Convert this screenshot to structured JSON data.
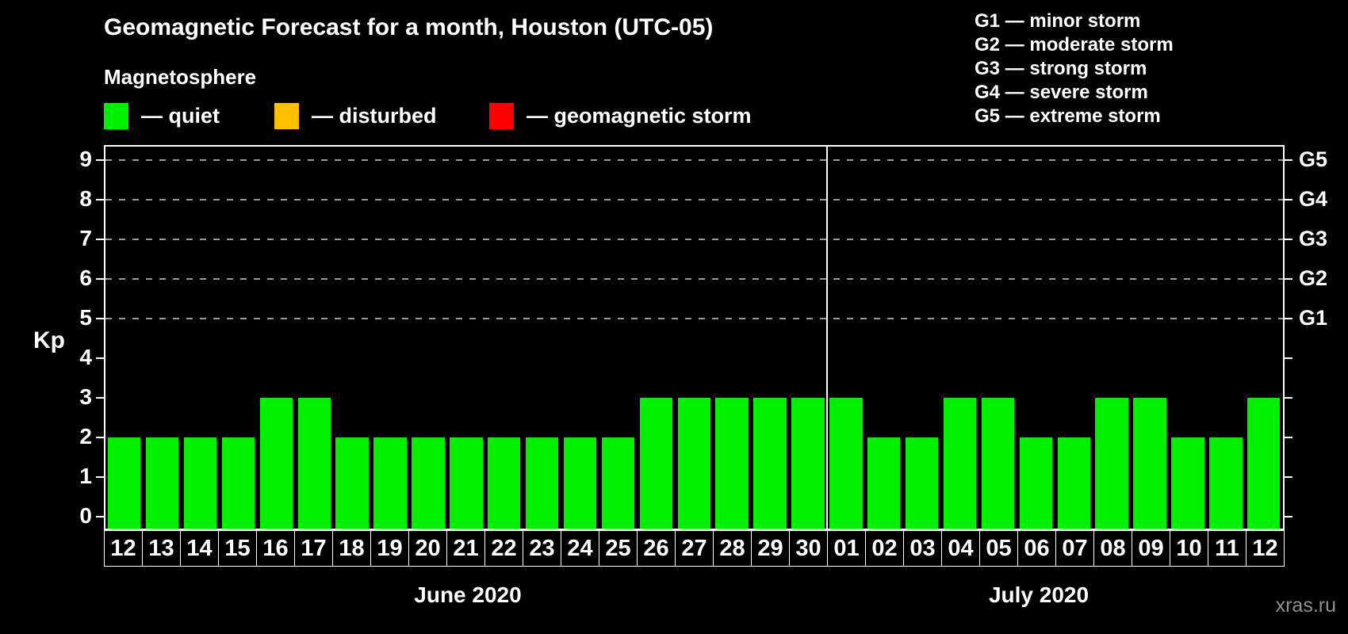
{
  "title": "Geomagnetic Forecast for a month, Houston (UTC-05)",
  "subtitle": "Magnetosphere",
  "legend": {
    "quiet": {
      "label": "— quiet",
      "color": "#00F000"
    },
    "disturbed": {
      "label": "— disturbed",
      "color": "#FFC000"
    },
    "storm": {
      "label": "— geomagnetic storm",
      "color": "#FF0000"
    }
  },
  "g_scale_legend": {
    "lines": [
      "G1 — minor storm",
      "G2 — moderate storm",
      "G3 — strong storm",
      "G4 — severe storm",
      "G5 — extreme storm"
    ]
  },
  "axes": {
    "y_label": "Kp",
    "y_ticks": [
      "0",
      "1",
      "2",
      "3",
      "4",
      "5",
      "6",
      "7",
      "8",
      "9"
    ],
    "g_labels": [
      {
        "label": "G1",
        "kp": 5
      },
      {
        "label": "G2",
        "kp": 6
      },
      {
        "label": "G3",
        "kp": 7
      },
      {
        "label": "G4",
        "kp": 8
      },
      {
        "label": "G5",
        "kp": 9
      }
    ],
    "grid_levels": [
      5,
      6,
      7,
      8,
      9
    ]
  },
  "watermark": "xras.ru",
  "chart_data": {
    "type": "bar",
    "title": "Geomagnetic Forecast for a month, Houston (UTC-05)",
    "xlabel": "",
    "ylabel": "Kp",
    "ylim": [
      0,
      9
    ],
    "grid": "dashed at Kp 5-9 (G1-G5)",
    "bar_color": "#00F000",
    "bar_status": "quiet",
    "categories": [
      "12",
      "13",
      "14",
      "15",
      "16",
      "17",
      "18",
      "19",
      "20",
      "21",
      "22",
      "23",
      "24",
      "25",
      "26",
      "27",
      "28",
      "29",
      "30",
      "01",
      "02",
      "03",
      "04",
      "05",
      "06",
      "07",
      "08",
      "09",
      "10",
      "11",
      "12"
    ],
    "values": [
      2,
      2,
      2,
      2,
      3,
      3,
      2,
      2,
      2,
      2,
      2,
      2,
      2,
      2,
      3,
      3,
      3,
      3,
      3,
      3,
      2,
      2,
      3,
      3,
      2,
      2,
      3,
      3,
      2,
      2,
      3
    ],
    "months": [
      {
        "label": "June 2020",
        "days": 19
      },
      {
        "label": "July 2020",
        "days": 12
      }
    ]
  }
}
